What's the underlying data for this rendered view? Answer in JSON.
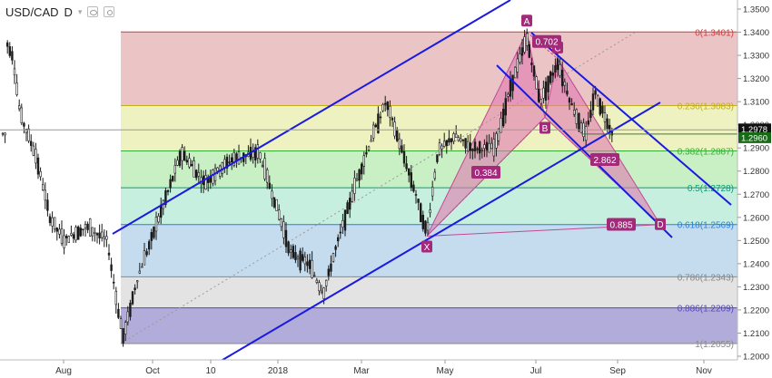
{
  "header": {
    "symbol": "USD/CAD",
    "timeframe": "D",
    "menu_glyph": "▾"
  },
  "chart_data": {
    "type": "candlestick",
    "y_axis": {
      "min": 1.2,
      "max": 1.35,
      "ticks": [
        "1.3500",
        "1.3400",
        "1.3300",
        "1.3200",
        "1.3100",
        "1.3000",
        "1.2900",
        "1.2800",
        "1.2700",
        "1.2600",
        "1.2500",
        "1.2400",
        "1.2300",
        "1.2200",
        "1.2100",
        "1.2000"
      ]
    },
    "x_axis": {
      "ticks": [
        "Aug",
        "Oct",
        "10",
        "2018",
        "Mar",
        "May",
        "Jul",
        "Sep",
        "Nov"
      ]
    },
    "current_price_labels": [
      "1.2978",
      "1.2960"
    ],
    "fibonacci_levels": [
      {
        "label": "0(1.3401)",
        "value": 1.3401
      },
      {
        "label": "0.236(1.3083)",
        "value": 1.3083
      },
      {
        "label": "0.382(1.2887)",
        "value": 1.2887
      },
      {
        "label": "0.5(1.2728)",
        "value": 1.2728
      },
      {
        "label": "0.618(1.2569)",
        "value": 1.2569
      },
      {
        "label": "0.786(1.2343)",
        "value": 1.2343
      },
      {
        "label": "0.886(1.2209)",
        "value": 1.2209
      },
      {
        "label": "1(1.2055)",
        "value": 1.2055
      }
    ],
    "fibonacci_zones": [
      {
        "from": 1.3401,
        "to": 1.3083,
        "color": "#ebc4c6"
      },
      {
        "from": 1.3083,
        "to": 1.2887,
        "color": "#eef1c0"
      },
      {
        "from": 1.2887,
        "to": 1.2728,
        "color": "#c9efc4"
      },
      {
        "from": 1.2728,
        "to": 1.2569,
        "color": "#c7efdf"
      },
      {
        "from": 1.2569,
        "to": 1.2343,
        "color": "#c4dcee"
      },
      {
        "from": 1.2343,
        "to": 1.2209,
        "color": "#e3e3e3"
      },
      {
        "from": 1.2209,
        "to": 1.2055,
        "color": "#b2acda"
      }
    ],
    "fibonacci_line_colors": [
      "#888888",
      "#d23b3b",
      "#c2ae1c",
      "#39ad39",
      "#0d9a7a",
      "#2a7fd4",
      "#888888",
      "#5548b8",
      "#888888"
    ],
    "pattern_points": [
      {
        "label": "X",
        "price": 1.2519
      },
      {
        "label": "A",
        "price": 1.3401
      },
      {
        "label": "B",
        "price": 1.3032
      },
      {
        "label": "C",
        "price": 1.3285
      },
      {
        "label": "D",
        "price": 1.2569
      }
    ],
    "pattern_ratios": [
      "0.702",
      "0.384",
      "2.862",
      "0.885"
    ],
    "colors": {
      "pattern_fill": "#e07ab0",
      "pattern_label_bg": "#a3297a",
      "channel_line": "#1a1ae0",
      "candle": "#1a1a1a",
      "price_tag_bg": "#111111"
    }
  }
}
